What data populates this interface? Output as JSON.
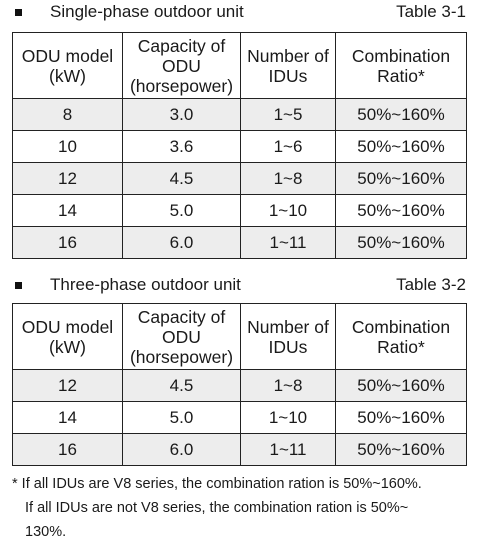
{
  "table1": {
    "title": "Single-phase outdoor unit",
    "label": "Table 3-1",
    "headers": [
      "ODU model (kW)",
      "Capacity of ODU (horsepower)",
      "Number of IDUs",
      "Combination Ratio*"
    ],
    "rows": [
      [
        "8",
        "3.0",
        "1~5",
        "50%~160%"
      ],
      [
        "10",
        "3.6",
        "1~6",
        "50%~160%"
      ],
      [
        "12",
        "4.5",
        "1~8",
        "50%~160%"
      ],
      [
        "14",
        "5.0",
        "1~10",
        "50%~160%"
      ],
      [
        "16",
        "6.0",
        "1~11",
        "50%~160%"
      ]
    ]
  },
  "table2": {
    "title": "Three-phase outdoor unit",
    "label": "Table 3-2",
    "headers": [
      "ODU model (kW)",
      "Capacity of ODU (horsepower)",
      "Number of IDUs",
      "Combination Ratio*"
    ],
    "rows": [
      [
        "12",
        "4.5",
        "1~8",
        "50%~160%"
      ],
      [
        "14",
        "5.0",
        "1~10",
        "50%~160%"
      ],
      [
        "16",
        "6.0",
        "1~11",
        "50%~160%"
      ]
    ]
  },
  "footnote": {
    "line1": "*  If all IDUs are V8 series, the combination ration is 50%~160%.",
    "line2": "If all IDUs are not V8 series, the combination ration is 50%~",
    "line3": "130%."
  }
}
